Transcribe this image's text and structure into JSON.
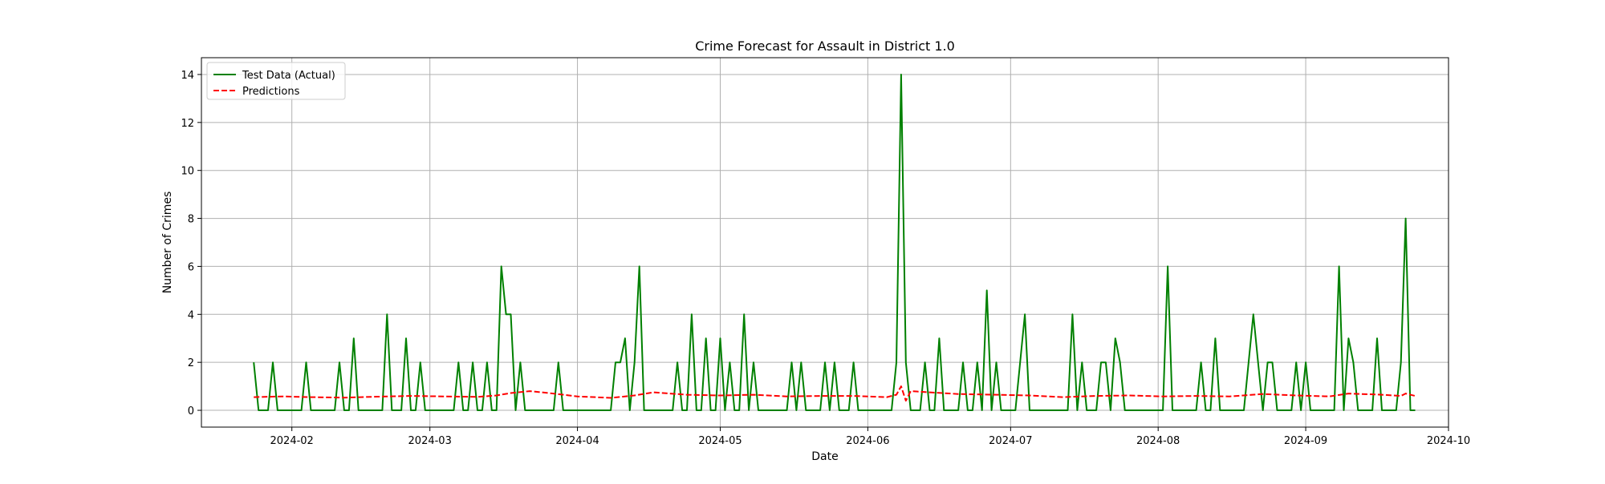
{
  "chart_data": {
    "type": "line",
    "title": "Crime Forecast for Assault in District 1.0",
    "xlabel": "Date",
    "ylabel": "Number of Crimes",
    "x_tick_labels": [
      "2024-02",
      "2024-03",
      "2024-04",
      "2024-05",
      "2024-06",
      "2024-07",
      "2024-08",
      "2024-09",
      "2024-10"
    ],
    "x_tick_dates": [
      "2024-02-01",
      "2024-03-01",
      "2024-04-01",
      "2024-05-01",
      "2024-06-01",
      "2024-07-01",
      "2024-08-01",
      "2024-09-01",
      "2024-10-01"
    ],
    "y_ticks": [
      0,
      2,
      4,
      6,
      8,
      10,
      12,
      14
    ],
    "y_tick_labels": [
      "0",
      "2",
      "4",
      "6",
      "8",
      "10",
      "12",
      "14"
    ],
    "xlim": [
      "2024-01-13",
      "2024-10-01"
    ],
    "ylim": [
      -0.7,
      14.7
    ],
    "grid": true,
    "legend_position": "top-left",
    "series": [
      {
        "name": "Test Data (Actual)",
        "color": "#008000",
        "style": "solid",
        "points": [
          [
            "2024-01-24",
            2
          ],
          [
            "2024-01-25",
            0
          ],
          [
            "2024-01-27",
            0
          ],
          [
            "2024-01-28",
            2
          ],
          [
            "2024-01-29",
            0
          ],
          [
            "2024-02-03",
            0
          ],
          [
            "2024-02-04",
            2
          ],
          [
            "2024-02-05",
            0
          ],
          [
            "2024-02-10",
            0
          ],
          [
            "2024-02-11",
            2
          ],
          [
            "2024-02-12",
            0
          ],
          [
            "2024-02-13",
            0
          ],
          [
            "2024-02-14",
            3
          ],
          [
            "2024-02-15",
            0
          ],
          [
            "2024-02-20",
            0
          ],
          [
            "2024-02-21",
            4
          ],
          [
            "2024-02-22",
            0
          ],
          [
            "2024-02-24",
            0
          ],
          [
            "2024-02-25",
            3
          ],
          [
            "2024-02-26",
            0
          ],
          [
            "2024-02-27",
            0
          ],
          [
            "2024-02-28",
            2
          ],
          [
            "2024-02-29",
            0
          ],
          [
            "2024-03-06",
            0
          ],
          [
            "2024-03-07",
            2
          ],
          [
            "2024-03-08",
            0
          ],
          [
            "2024-03-09",
            0
          ],
          [
            "2024-03-10",
            2
          ],
          [
            "2024-03-11",
            0
          ],
          [
            "2024-03-12",
            0
          ],
          [
            "2024-03-13",
            2
          ],
          [
            "2024-03-14",
            0
          ],
          [
            "2024-03-15",
            0
          ],
          [
            "2024-03-16",
            6
          ],
          [
            "2024-03-17",
            4
          ],
          [
            "2024-03-18",
            4
          ],
          [
            "2024-03-19",
            0
          ],
          [
            "2024-03-20",
            2
          ],
          [
            "2024-03-21",
            0
          ],
          [
            "2024-03-27",
            0
          ],
          [
            "2024-03-28",
            2
          ],
          [
            "2024-03-29",
            0
          ],
          [
            "2024-04-08",
            0
          ],
          [
            "2024-04-09",
            2
          ],
          [
            "2024-04-10",
            2
          ],
          [
            "2024-04-11",
            3
          ],
          [
            "2024-04-12",
            0
          ],
          [
            "2024-04-13",
            2
          ],
          [
            "2024-04-14",
            6
          ],
          [
            "2024-04-15",
            0
          ],
          [
            "2024-04-21",
            0
          ],
          [
            "2024-04-22",
            2
          ],
          [
            "2024-04-23",
            0
          ],
          [
            "2024-04-24",
            0
          ],
          [
            "2024-04-25",
            4
          ],
          [
            "2024-04-26",
            0
          ],
          [
            "2024-04-27",
            0
          ],
          [
            "2024-04-28",
            3
          ],
          [
            "2024-04-29",
            0
          ],
          [
            "2024-04-30",
            0
          ],
          [
            "2024-05-01",
            3
          ],
          [
            "2024-05-02",
            0
          ],
          [
            "2024-05-03",
            2
          ],
          [
            "2024-05-04",
            0
          ],
          [
            "2024-05-05",
            0
          ],
          [
            "2024-05-06",
            4
          ],
          [
            "2024-05-07",
            0
          ],
          [
            "2024-05-08",
            2
          ],
          [
            "2024-05-09",
            0
          ],
          [
            "2024-05-15",
            0
          ],
          [
            "2024-05-16",
            2
          ],
          [
            "2024-05-17",
            0
          ],
          [
            "2024-05-18",
            2
          ],
          [
            "2024-05-19",
            0
          ],
          [
            "2024-05-22",
            0
          ],
          [
            "2024-05-23",
            2
          ],
          [
            "2024-05-24",
            0
          ],
          [
            "2024-05-25",
            2
          ],
          [
            "2024-05-26",
            0
          ],
          [
            "2024-05-28",
            0
          ],
          [
            "2024-05-29",
            2
          ],
          [
            "2024-05-30",
            0
          ],
          [
            "2024-06-06",
            0
          ],
          [
            "2024-06-07",
            2
          ],
          [
            "2024-06-08",
            14
          ],
          [
            "2024-06-09",
            2
          ],
          [
            "2024-06-10",
            0
          ],
          [
            "2024-06-12",
            0
          ],
          [
            "2024-06-13",
            2
          ],
          [
            "2024-06-14",
            0
          ],
          [
            "2024-06-15",
            0
          ],
          [
            "2024-06-16",
            3
          ],
          [
            "2024-06-17",
            0
          ],
          [
            "2024-06-20",
            0
          ],
          [
            "2024-06-21",
            2
          ],
          [
            "2024-06-22",
            0
          ],
          [
            "2024-06-23",
            0
          ],
          [
            "2024-06-24",
            2
          ],
          [
            "2024-06-25",
            0
          ],
          [
            "2024-06-26",
            5
          ],
          [
            "2024-06-27",
            0
          ],
          [
            "2024-06-28",
            2
          ],
          [
            "2024-06-29",
            0
          ],
          [
            "2024-07-02",
            0
          ],
          [
            "2024-07-04",
            4
          ],
          [
            "2024-07-05",
            0
          ],
          [
            "2024-07-13",
            0
          ],
          [
            "2024-07-14",
            4
          ],
          [
            "2024-07-15",
            0
          ],
          [
            "2024-07-16",
            2
          ],
          [
            "2024-07-17",
            0
          ],
          [
            "2024-07-19",
            0
          ],
          [
            "2024-07-20",
            2
          ],
          [
            "2024-07-21",
            2
          ],
          [
            "2024-07-22",
            0
          ],
          [
            "2024-07-23",
            3
          ],
          [
            "2024-07-24",
            2
          ],
          [
            "2024-07-25",
            0
          ],
          [
            "2024-08-02",
            0
          ],
          [
            "2024-08-03",
            6
          ],
          [
            "2024-08-04",
            0
          ],
          [
            "2024-08-09",
            0
          ],
          [
            "2024-08-10",
            2
          ],
          [
            "2024-08-11",
            0
          ],
          [
            "2024-08-12",
            0
          ],
          [
            "2024-08-13",
            3
          ],
          [
            "2024-08-14",
            0
          ],
          [
            "2024-08-19",
            0
          ],
          [
            "2024-08-21",
            4
          ],
          [
            "2024-08-22",
            2
          ],
          [
            "2024-08-23",
            0
          ],
          [
            "2024-08-24",
            2
          ],
          [
            "2024-08-25",
            2
          ],
          [
            "2024-08-26",
            0
          ],
          [
            "2024-08-29",
            0
          ],
          [
            "2024-08-30",
            2
          ],
          [
            "2024-08-31",
            0
          ],
          [
            "2024-09-01",
            2
          ],
          [
            "2024-09-02",
            0
          ],
          [
            "2024-09-07",
            0
          ],
          [
            "2024-09-08",
            6
          ],
          [
            "2024-09-09",
            0
          ],
          [
            "2024-09-10",
            3
          ],
          [
            "2024-09-11",
            2
          ],
          [
            "2024-09-12",
            0
          ],
          [
            "2024-09-15",
            0
          ],
          [
            "2024-09-16",
            3
          ],
          [
            "2024-09-17",
            0
          ],
          [
            "2024-09-20",
            0
          ],
          [
            "2024-09-21",
            2
          ],
          [
            "2024-09-22",
            8
          ],
          [
            "2024-09-23",
            0
          ],
          [
            "2024-09-24",
            0
          ]
        ]
      },
      {
        "name": "Predictions",
        "color": "#ff0000",
        "style": "dashed",
        "points": [
          [
            "2024-01-24",
            0.55
          ],
          [
            "2024-01-30",
            0.58
          ],
          [
            "2024-02-05",
            0.55
          ],
          [
            "2024-02-12",
            0.53
          ],
          [
            "2024-02-19",
            0.57
          ],
          [
            "2024-02-26",
            0.6
          ],
          [
            "2024-03-04",
            0.58
          ],
          [
            "2024-03-11",
            0.56
          ],
          [
            "2024-03-15",
            0.62
          ],
          [
            "2024-03-18",
            0.72
          ],
          [
            "2024-03-22",
            0.8
          ],
          [
            "2024-03-26",
            0.72
          ],
          [
            "2024-04-01",
            0.58
          ],
          [
            "2024-04-08",
            0.52
          ],
          [
            "2024-04-13",
            0.62
          ],
          [
            "2024-04-17",
            0.75
          ],
          [
            "2024-04-24",
            0.65
          ],
          [
            "2024-05-01",
            0.62
          ],
          [
            "2024-05-08",
            0.65
          ],
          [
            "2024-05-15",
            0.58
          ],
          [
            "2024-05-22",
            0.6
          ],
          [
            "2024-05-29",
            0.6
          ],
          [
            "2024-06-05",
            0.55
          ],
          [
            "2024-06-07",
            0.65
          ],
          [
            "2024-06-08",
            1.0
          ],
          [
            "2024-06-09",
            0.4
          ],
          [
            "2024-06-10",
            0.8
          ],
          [
            "2024-06-14",
            0.75
          ],
          [
            "2024-06-20",
            0.68
          ],
          [
            "2024-06-28",
            0.65
          ],
          [
            "2024-07-05",
            0.62
          ],
          [
            "2024-07-12",
            0.55
          ],
          [
            "2024-07-19",
            0.6
          ],
          [
            "2024-07-26",
            0.62
          ],
          [
            "2024-08-02",
            0.58
          ],
          [
            "2024-08-09",
            0.6
          ],
          [
            "2024-08-16",
            0.58
          ],
          [
            "2024-08-23",
            0.68
          ],
          [
            "2024-08-30",
            0.62
          ],
          [
            "2024-09-06",
            0.58
          ],
          [
            "2024-09-10",
            0.7
          ],
          [
            "2024-09-17",
            0.65
          ],
          [
            "2024-09-21",
            0.6
          ],
          [
            "2024-09-22",
            0.7
          ],
          [
            "2024-09-24",
            0.6
          ]
        ]
      }
    ]
  }
}
